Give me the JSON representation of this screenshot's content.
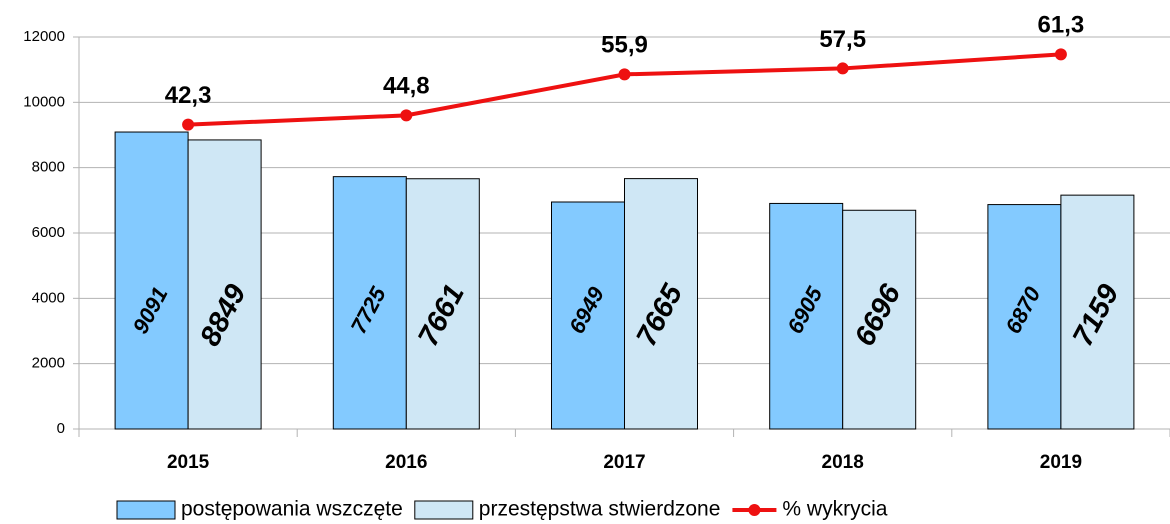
{
  "chart_data": {
    "type": "bar",
    "categories": [
      "2015",
      "2016",
      "2017",
      "2018",
      "2019"
    ],
    "ylim": [
      0,
      12000
    ],
    "yticks": [
      0,
      2000,
      4000,
      6000,
      8000,
      10000,
      12000
    ],
    "y2lim": [
      -40,
      66
    ],
    "grid": true,
    "legend": "bottom",
    "series": [
      {
        "name": "postępowania wszczęte",
        "type": "bar",
        "color": "#83caff",
        "values": [
          9091,
          7725,
          6949,
          6905,
          6870
        ]
      },
      {
        "name": "przestępstwa stwierdzone",
        "type": "bar",
        "color": "#cfe7f5",
        "values": [
          8849,
          7661,
          7665,
          6696,
          7159
        ]
      },
      {
        "name": "% wykrycia",
        "type": "line",
        "axis": "y2",
        "color": "#ee1111",
        "values": [
          42.3,
          44.8,
          55.9,
          57.5,
          61.3
        ],
        "value_labels": [
          "42,3",
          "44,8",
          "55,9",
          "57,5",
          "61,3"
        ]
      }
    ]
  }
}
